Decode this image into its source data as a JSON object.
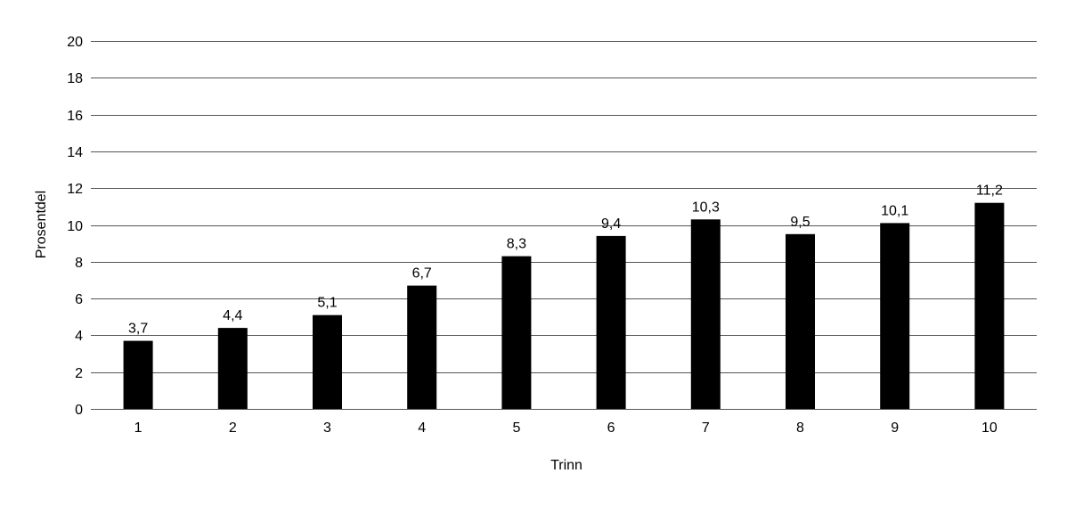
{
  "chart_data": {
    "type": "bar",
    "title": "",
    "xlabel": "Trinn",
    "ylabel": "Prosentdel",
    "categories": [
      "1",
      "2",
      "3",
      "4",
      "5",
      "6",
      "7",
      "8",
      "9",
      "10"
    ],
    "values": [
      3.7,
      4.4,
      5.1,
      6.7,
      8.3,
      9.4,
      10.3,
      9.5,
      10.1,
      11.2
    ],
    "data_labels": [
      "3,7",
      "4,4",
      "5,1",
      "6,7",
      "8,3",
      "9,4",
      "10,3",
      "9,5",
      "10,1",
      "11,2"
    ],
    "ylim": [
      0,
      20
    ],
    "yticks": [
      0,
      2,
      4,
      6,
      8,
      10,
      12,
      14,
      16,
      18,
      20
    ],
    "grid": true,
    "legend": "none",
    "colors": {
      "bar": "#000000",
      "grid": "#555555",
      "text": "#000000"
    }
  }
}
